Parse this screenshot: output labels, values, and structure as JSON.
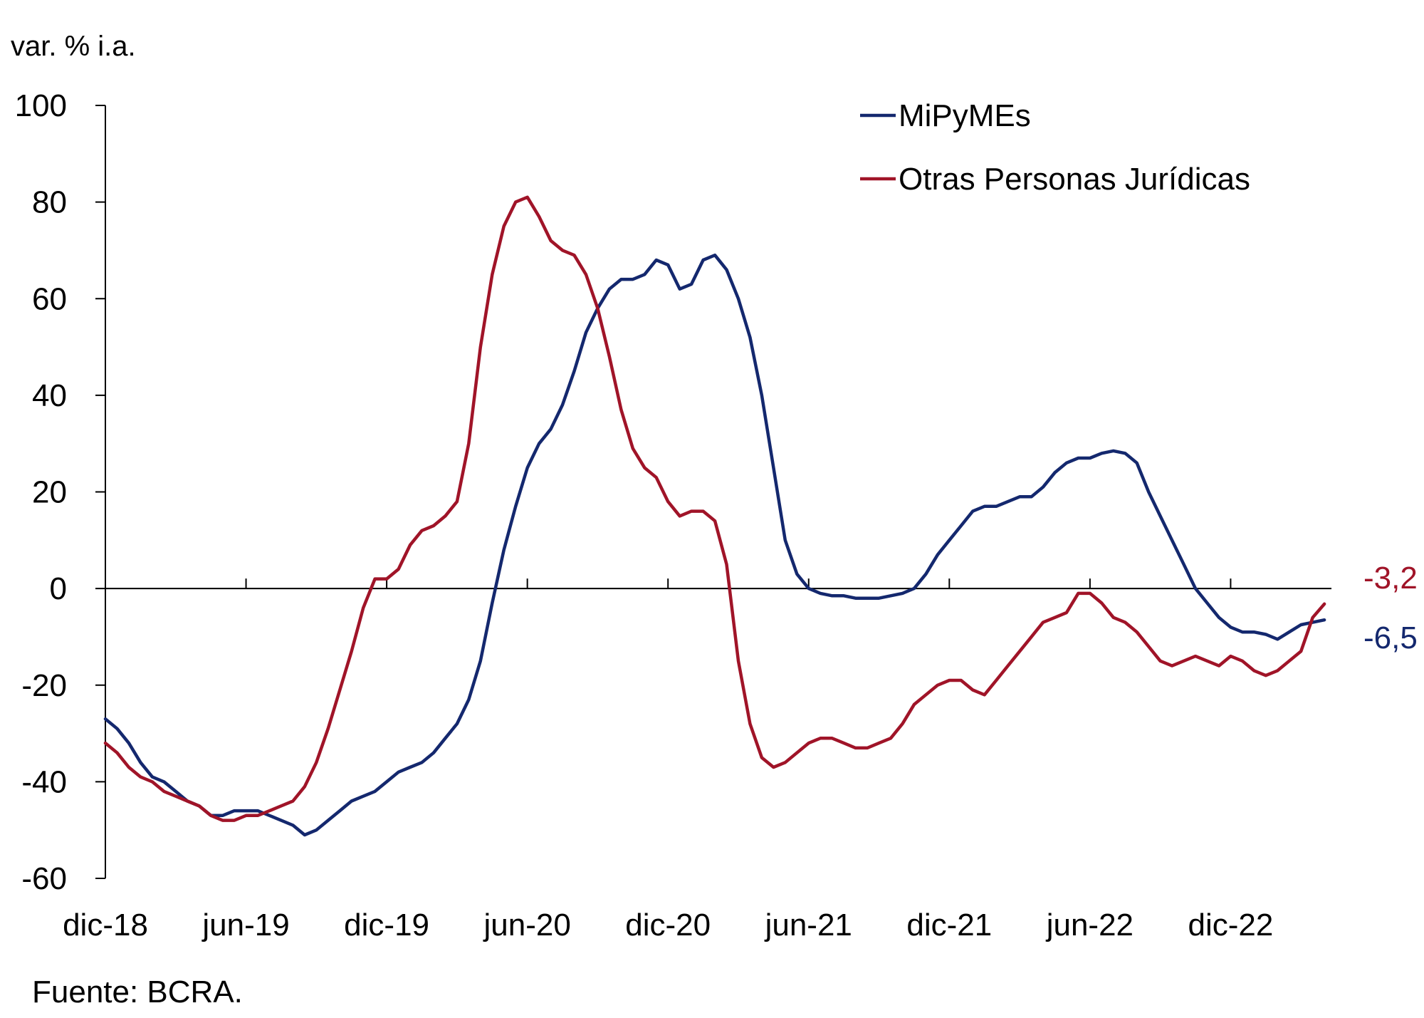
{
  "chart_data": {
    "type": "line",
    "ylabel": "var. % i.a.",
    "ylim": [
      -60,
      100
    ],
    "yticks": [
      -60,
      -40,
      -20,
      0,
      20,
      40,
      60,
      80,
      100
    ],
    "x_start": "dic-18",
    "x_end": "abr-23",
    "x_unit": "months since dic-18",
    "xticks": [
      {
        "label": "dic-18",
        "month": 0
      },
      {
        "label": "jun-19",
        "month": 6
      },
      {
        "label": "dic-19",
        "month": 12
      },
      {
        "label": "jun-20",
        "month": 18
      },
      {
        "label": "dic-20",
        "month": 24
      },
      {
        "label": "jun-21",
        "month": 30
      },
      {
        "label": "dic-21",
        "month": 36
      },
      {
        "label": "jun-22",
        "month": 42
      },
      {
        "label": "dic-22",
        "month": 48
      }
    ],
    "legend_position": "top-right",
    "series": [
      {
        "name": "MiPyMEs",
        "color": "#14286E",
        "end_label": "-6,5",
        "points": [
          [
            0,
            -27
          ],
          [
            0.5,
            -29
          ],
          [
            1,
            -32
          ],
          [
            1.5,
            -36
          ],
          [
            2,
            -39
          ],
          [
            2.5,
            -40
          ],
          [
            3,
            -42
          ],
          [
            3.5,
            -44
          ],
          [
            4,
            -45
          ],
          [
            4.5,
            -47
          ],
          [
            5,
            -47
          ],
          [
            5.5,
            -46
          ],
          [
            6,
            -46
          ],
          [
            6.5,
            -46
          ],
          [
            7,
            -47
          ],
          [
            7.5,
            -48
          ],
          [
            8,
            -49
          ],
          [
            8.5,
            -51
          ],
          [
            9,
            -50
          ],
          [
            9.5,
            -48
          ],
          [
            10,
            -46
          ],
          [
            10.5,
            -44
          ],
          [
            11,
            -43
          ],
          [
            11.5,
            -42
          ],
          [
            12,
            -40
          ],
          [
            12.5,
            -38
          ],
          [
            13,
            -37
          ],
          [
            13.5,
            -36
          ],
          [
            14,
            -34
          ],
          [
            14.5,
            -31
          ],
          [
            15,
            -28
          ],
          [
            15.5,
            -23
          ],
          [
            16,
            -15
          ],
          [
            16.5,
            -3
          ],
          [
            17,
            8
          ],
          [
            17.5,
            17
          ],
          [
            18,
            25
          ],
          [
            18.5,
            30
          ],
          [
            19,
            33
          ],
          [
            19.5,
            38
          ],
          [
            20,
            45
          ],
          [
            20.5,
            53
          ],
          [
            21,
            58
          ],
          [
            21.5,
            62
          ],
          [
            22,
            64
          ],
          [
            22.5,
            64
          ],
          [
            23,
            65
          ],
          [
            23.5,
            68
          ],
          [
            24,
            67
          ],
          [
            24.5,
            62
          ],
          [
            25,
            63
          ],
          [
            25.5,
            68
          ],
          [
            26,
            69
          ],
          [
            26.5,
            66
          ],
          [
            27,
            60
          ],
          [
            27.5,
            52
          ],
          [
            28,
            40
          ],
          [
            28.5,
            25
          ],
          [
            29,
            10
          ],
          [
            29.5,
            3
          ],
          [
            30,
            0
          ],
          [
            30.5,
            -1
          ],
          [
            31,
            -1.5
          ],
          [
            31.5,
            -1.5
          ],
          [
            32,
            -2
          ],
          [
            32.5,
            -2
          ],
          [
            33,
            -2
          ],
          [
            33.5,
            -1.5
          ],
          [
            34,
            -1
          ],
          [
            34.5,
            0
          ],
          [
            35,
            3
          ],
          [
            35.5,
            7
          ],
          [
            36,
            10
          ],
          [
            36.5,
            13
          ],
          [
            37,
            16
          ],
          [
            37.5,
            17
          ],
          [
            38,
            17
          ],
          [
            38.5,
            18
          ],
          [
            39,
            19
          ],
          [
            39.5,
            19
          ],
          [
            40,
            21
          ],
          [
            40.5,
            24
          ],
          [
            41,
            26
          ],
          [
            41.5,
            27
          ],
          [
            42,
            27
          ],
          [
            42.5,
            28
          ],
          [
            43,
            28.5
          ],
          [
            43.5,
            28
          ],
          [
            44,
            26
          ],
          [
            44.5,
            20
          ],
          [
            45,
            15
          ],
          [
            45.5,
            10
          ],
          [
            46,
            5
          ],
          [
            46.5,
            0
          ],
          [
            47,
            -3
          ],
          [
            47.5,
            -6
          ],
          [
            48,
            -8
          ],
          [
            48.5,
            -9
          ],
          [
            49,
            -9
          ],
          [
            49.5,
            -9.5
          ],
          [
            50,
            -10.5
          ],
          [
            50.5,
            -9
          ],
          [
            51,
            -7.5
          ],
          [
            51.5,
            -7
          ],
          [
            52,
            -6.5
          ]
        ]
      },
      {
        "name": "Otras Personas Jurídicas",
        "color": "#A01428",
        "end_label": "-3,2",
        "points": [
          [
            0,
            -32
          ],
          [
            0.5,
            -34
          ],
          [
            1,
            -37
          ],
          [
            1.5,
            -39
          ],
          [
            2,
            -40
          ],
          [
            2.5,
            -42
          ],
          [
            3,
            -43
          ],
          [
            3.5,
            -44
          ],
          [
            4,
            -45
          ],
          [
            4.5,
            -47
          ],
          [
            5,
            -48
          ],
          [
            5.5,
            -48
          ],
          [
            6,
            -47
          ],
          [
            6.5,
            -47
          ],
          [
            7,
            -46
          ],
          [
            7.5,
            -45
          ],
          [
            8,
            -44
          ],
          [
            8.5,
            -41
          ],
          [
            9,
            -36
          ],
          [
            9.5,
            -29
          ],
          [
            10,
            -21
          ],
          [
            10.5,
            -13
          ],
          [
            11,
            -4
          ],
          [
            11.5,
            2
          ],
          [
            12,
            2
          ],
          [
            12.5,
            4
          ],
          [
            13,
            9
          ],
          [
            13.5,
            12
          ],
          [
            14,
            13
          ],
          [
            14.5,
            15
          ],
          [
            15,
            18
          ],
          [
            15.5,
            30
          ],
          [
            16,
            50
          ],
          [
            16.5,
            65
          ],
          [
            17,
            75
          ],
          [
            17.5,
            80
          ],
          [
            18,
            81
          ],
          [
            18.5,
            77
          ],
          [
            19,
            72
          ],
          [
            19.5,
            70
          ],
          [
            20,
            69
          ],
          [
            20.5,
            65
          ],
          [
            21,
            58
          ],
          [
            21.5,
            48
          ],
          [
            22,
            37
          ],
          [
            22.5,
            29
          ],
          [
            23,
            25
          ],
          [
            23.5,
            23
          ],
          [
            24,
            18
          ],
          [
            24.5,
            15
          ],
          [
            25,
            16
          ],
          [
            25.5,
            16
          ],
          [
            26,
            14
          ],
          [
            26.5,
            5
          ],
          [
            27,
            -15
          ],
          [
            27.5,
            -28
          ],
          [
            28,
            -35
          ],
          [
            28.5,
            -37
          ],
          [
            29,
            -36
          ],
          [
            29.5,
            -34
          ],
          [
            30,
            -32
          ],
          [
            30.5,
            -31
          ],
          [
            31,
            -31
          ],
          [
            31.5,
            -32
          ],
          [
            32,
            -33
          ],
          [
            32.5,
            -33
          ],
          [
            33,
            -32
          ],
          [
            33.5,
            -31
          ],
          [
            34,
            -28
          ],
          [
            34.5,
            -24
          ],
          [
            35,
            -22
          ],
          [
            35.5,
            -20
          ],
          [
            36,
            -19
          ],
          [
            36.5,
            -19
          ],
          [
            37,
            -21
          ],
          [
            37.5,
            -22
          ],
          [
            38,
            -19
          ],
          [
            38.5,
            -16
          ],
          [
            39,
            -13
          ],
          [
            39.5,
            -10
          ],
          [
            40,
            -7
          ],
          [
            40.5,
            -6
          ],
          [
            41,
            -5
          ],
          [
            41.5,
            -1
          ],
          [
            42,
            -1
          ],
          [
            42.5,
            -3
          ],
          [
            43,
            -6
          ],
          [
            43.5,
            -7
          ],
          [
            44,
            -9
          ],
          [
            44.5,
            -12
          ],
          [
            45,
            -15
          ],
          [
            45.5,
            -16
          ],
          [
            46,
            -15
          ],
          [
            46.5,
            -14
          ],
          [
            47,
            -15
          ],
          [
            47.5,
            -16
          ],
          [
            48,
            -14
          ],
          [
            48.5,
            -15
          ],
          [
            49,
            -17
          ],
          [
            49.5,
            -18
          ],
          [
            50,
            -17
          ],
          [
            50.5,
            -15
          ],
          [
            51,
            -13
          ],
          [
            51.5,
            -6
          ],
          [
            52,
            -3.2
          ]
        ]
      }
    ]
  },
  "source": "Fuente: BCRA."
}
